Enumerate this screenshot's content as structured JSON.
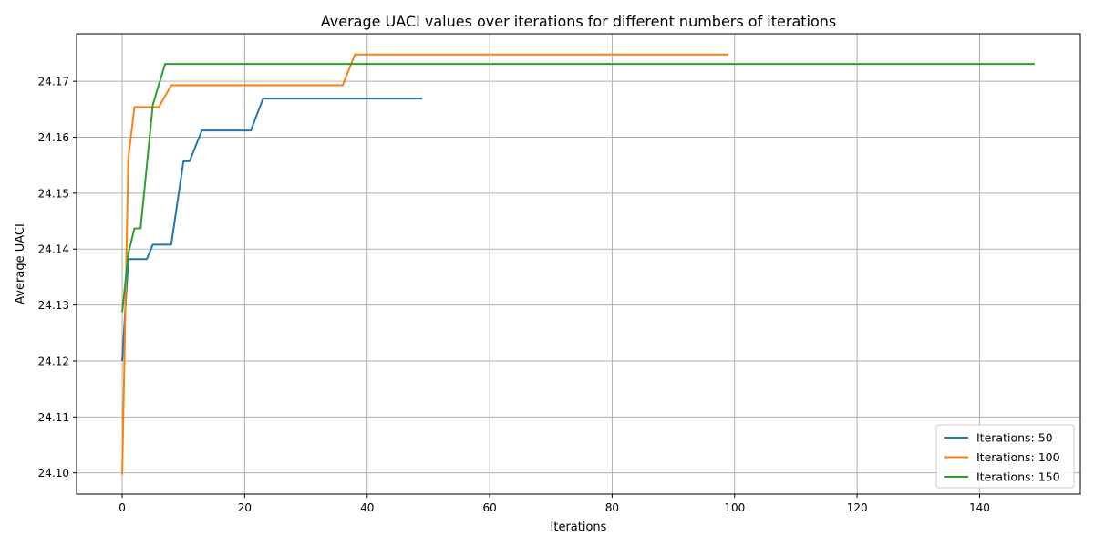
{
  "chart_data": {
    "type": "line",
    "title": "Average UACI values over iterations for different numbers of iterations",
    "xlabel": "Iterations",
    "ylabel": "Average UACI",
    "xlim": [
      -7.45,
      156.45
    ],
    "ylim": [
      24.0962,
      24.1785
    ],
    "xticks": [
      0,
      20,
      40,
      60,
      80,
      100,
      120,
      140
    ],
    "xtick_labels": [
      "0",
      "20",
      "40",
      "60",
      "80",
      "100",
      "120",
      "140"
    ],
    "yticks": [
      24.1,
      24.11,
      24.12,
      24.13,
      24.14,
      24.15,
      24.16,
      24.17
    ],
    "ytick_labels": [
      "24.10",
      "24.11",
      "24.12",
      "24.13",
      "24.14",
      "24.15",
      "24.16",
      "24.17"
    ],
    "grid": true,
    "legend_position": "lower-right",
    "series": [
      {
        "name": "Iterations: 50",
        "color": "#1f77b4",
        "points": [
          [
            0,
            24.12
          ],
          [
            1,
            24.1382
          ],
          [
            4,
            24.1382
          ],
          [
            5,
            24.1408
          ],
          [
            8,
            24.1408
          ],
          [
            10,
            24.1557
          ],
          [
            11,
            24.1557
          ],
          [
            13,
            24.1612
          ],
          [
            21,
            24.1612
          ],
          [
            23,
            24.1669
          ],
          [
            49,
            24.1669
          ]
        ]
      },
      {
        "name": "Iterations: 100",
        "color": "#ff7f0e",
        "points": [
          [
            0,
            24.0997
          ],
          [
            1,
            24.1563
          ],
          [
            2,
            24.1654
          ],
          [
            6,
            24.1654
          ],
          [
            8,
            24.1693
          ],
          [
            36,
            24.1693
          ],
          [
            38,
            24.1748
          ],
          [
            99,
            24.1748
          ]
        ]
      },
      {
        "name": "Iterations: 150",
        "color": "#2ca02c",
        "points": [
          [
            0,
            24.1287
          ],
          [
            1,
            24.1392
          ],
          [
            2,
            24.1437
          ],
          [
            3,
            24.1437
          ],
          [
            5,
            24.1658
          ],
          [
            7,
            24.1731
          ],
          [
            149,
            24.1731
          ]
        ]
      }
    ]
  }
}
